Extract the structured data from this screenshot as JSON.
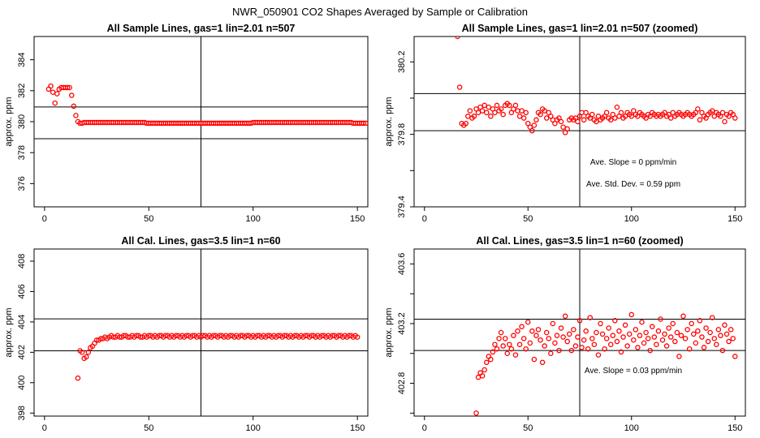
{
  "figure_title": "NWR_050901  CO2 Shapes Averaged by Sample or Calibration",
  "colors": {
    "marker": "#ff0000",
    "axes": "#000000",
    "background": "#ffffff"
  },
  "chart_data": [
    {
      "type": "scatter",
      "title": "All Sample Lines, gas=1 lin=2.01 n=507",
      "xlabel": "",
      "ylabel": "approx. ppm",
      "xlim": [
        -5,
        155
      ],
      "ylim": [
        374.5,
        385.5
      ],
      "xticks": [
        0,
        50,
        100,
        150
      ],
      "yticks": [
        376,
        378,
        380,
        382,
        384
      ],
      "vline": 75,
      "hlines": [
        378.9,
        380.95
      ],
      "annotations": [],
      "points": {
        "x_start": 2,
        "x_end": 150,
        "x_step": 1,
        "y": [
          382.1,
          382.3,
          381.9,
          381.2,
          381.8,
          382.1,
          382.2,
          382.2,
          382.2,
          382.2,
          382.2,
          381.7,
          381.0,
          380.4,
          380.0,
          379.9,
          379.9,
          379.95,
          379.95,
          379.95,
          379.95,
          379.95,
          379.95,
          379.95,
          379.95,
          379.95,
          379.95,
          379.95,
          379.95,
          379.95,
          379.95,
          379.95,
          379.95,
          379.95,
          379.95,
          379.95,
          379.95,
          379.95,
          379.95,
          379.95,
          379.95,
          379.95,
          379.95,
          379.95,
          379.95,
          379.95,
          379.95,
          379.9,
          379.9,
          379.9,
          379.9,
          379.9,
          379.9,
          379.9,
          379.9,
          379.9,
          379.9,
          379.9,
          379.9,
          379.9,
          379.9,
          379.9,
          379.9,
          379.9,
          379.9,
          379.9,
          379.9,
          379.9,
          379.9,
          379.9,
          379.9,
          379.9,
          379.9,
          379.9,
          379.9,
          379.9,
          379.9,
          379.9,
          379.9,
          379.9,
          379.9,
          379.9,
          379.9,
          379.9,
          379.9,
          379.9,
          379.9,
          379.9,
          379.9,
          379.9,
          379.9,
          379.9,
          379.9,
          379.9,
          379.9,
          379.9,
          379.9,
          379.9,
          379.95,
          379.95,
          379.95,
          379.95,
          379.95,
          379.95,
          379.95,
          379.95,
          379.95,
          379.95,
          379.95,
          379.95,
          379.95,
          379.95,
          379.95,
          379.95,
          379.95,
          379.95,
          379.95,
          379.95,
          379.95,
          379.95,
          379.95,
          379.95,
          379.95,
          379.95,
          379.95,
          379.95,
          379.95,
          379.95,
          379.95,
          379.95,
          379.95,
          379.95,
          379.95,
          379.95,
          379.95,
          379.95,
          379.95,
          379.95,
          379.95,
          379.95,
          379.95,
          379.95,
          379.95,
          379.95,
          379.95,
          379.95,
          379.9,
          379.9,
          379.9,
          379.9,
          379.9,
          379.9,
          379.9
        ]
      }
    },
    {
      "type": "scatter",
      "title": "All Sample Lines, gas=1 lin=2.01 n=507 (zoomed)",
      "xlabel": "",
      "ylabel": "approx. ppm",
      "xlim": [
        -5,
        155
      ],
      "ylim": [
        379.4,
        380.34
      ],
      "xticks": [
        0,
        50,
        100,
        150
      ],
      "yticks": [
        379.4,
        379.6,
        379.8,
        380.0,
        380.2
      ],
      "ytick_labels": [
        "379.4",
        "",
        "379.8",
        "",
        "380.2"
      ],
      "vline": 75,
      "hlines": [
        379.82,
        380.025
      ],
      "annotations": [
        "Ave. Slope =  0  ppm/min",
        "Ave. Std. Dev. =  0.59  ppm"
      ],
      "points": {
        "x_start": 16,
        "x_end": 150,
        "x_step": 1,
        "y": [
          380.34,
          380.06,
          379.86,
          379.85,
          379.86,
          379.9,
          379.93,
          379.89,
          379.9,
          379.94,
          379.92,
          379.95,
          379.93,
          379.96,
          379.92,
          379.95,
          379.9,
          379.94,
          379.92,
          379.96,
          379.93,
          379.94,
          379.91,
          379.96,
          379.97,
          379.96,
          379.92,
          379.94,
          379.96,
          379.93,
          379.9,
          379.93,
          379.89,
          379.92,
          379.86,
          379.84,
          379.82,
          379.85,
          379.88,
          379.92,
          379.91,
          379.94,
          379.93,
          379.89,
          379.92,
          379.9,
          379.88,
          379.86,
          379.88,
          379.89,
          379.87,
          379.84,
          379.81,
          379.83,
          379.88,
          379.89,
          379.88,
          379.89,
          379.87,
          379.9,
          379.92,
          379.88,
          379.92,
          379.9,
          379.89,
          379.91,
          379.88,
          379.87,
          379.9,
          379.88,
          379.89,
          379.9,
          379.92,
          379.89,
          379.88,
          379.91,
          379.89,
          379.95,
          379.9,
          379.92,
          379.89,
          379.9,
          379.92,
          379.91,
          379.9,
          379.93,
          379.91,
          379.9,
          379.92,
          379.91,
          379.9,
          379.89,
          379.91,
          379.9,
          379.92,
          379.91,
          379.9,
          379.91,
          379.9,
          379.91,
          379.92,
          379.9,
          379.91,
          379.89,
          379.92,
          379.9,
          379.91,
          379.92,
          379.91,
          379.9,
          379.91,
          379.92,
          379.91,
          379.9,
          379.91,
          379.92,
          379.94,
          379.88,
          379.92,
          379.9,
          379.89,
          379.91,
          379.92,
          379.93,
          379.9,
          379.92,
          379.91,
          379.9,
          379.92,
          379.87,
          379.91,
          379.9,
          379.92,
          379.91,
          379.89
        ]
      }
    },
    {
      "type": "scatter",
      "title": "All Cal. Lines, gas=3.5 lin=1 n=60",
      "xlabel": "",
      "ylabel": "approx. ppm",
      "xlim": [
        -5,
        155
      ],
      "ylim": [
        397.8,
        408.8
      ],
      "xticks": [
        0,
        50,
        100,
        150
      ],
      "yticks": [
        398,
        400,
        402,
        404,
        406,
        408
      ],
      "vline": 75,
      "hlines": [
        402.1,
        404.2
      ],
      "annotations": [],
      "points": {
        "x_start": 16,
        "x_end": 150,
        "x_step": 1,
        "y": [
          400.3,
          402.1,
          402.0,
          401.6,
          401.7,
          402.0,
          402.3,
          402.4,
          402.6,
          402.8,
          402.8,
          402.9,
          402.9,
          403.0,
          402.9,
          403.0,
          403.1,
          403.0,
          403.0,
          403.1,
          403.0,
          403.0,
          403.1,
          403.1,
          403.0,
          403.0,
          403.1,
          403.0,
          403.1,
          403.1,
          403.0,
          403.0,
          403.1,
          403.0,
          403.1,
          403.1,
          403.0,
          403.1,
          403.0,
          403.1,
          403.1,
          403.0,
          403.1,
          403.1,
          403.0,
          403.1,
          403.0,
          403.1,
          403.1,
          403.0,
          403.1,
          403.0,
          403.1,
          403.1,
          403.0,
          403.1,
          403.1,
          403.0,
          403.1,
          403.0,
          403.1,
          403.1,
          403.0,
          403.1,
          403.0,
          403.1,
          403.1,
          403.0,
          403.1,
          403.1,
          403.0,
          403.1,
          403.0,
          403.1,
          403.1,
          403.0,
          403.1,
          403.0,
          403.1,
          403.1,
          403.0,
          403.1,
          403.1,
          403.0,
          403.1,
          403.0,
          403.1,
          403.1,
          403.0,
          403.1,
          403.0,
          403.1,
          403.1,
          403.0,
          403.1,
          403.0,
          403.1,
          403.1,
          403.0,
          403.1,
          403.1,
          403.0,
          403.1,
          403.0,
          403.1,
          403.1,
          403.0,
          403.1,
          403.0,
          403.1,
          403.1,
          403.0,
          403.1,
          403.1,
          403.0,
          403.1,
          403.0,
          403.1,
          403.1,
          403.0,
          403.1,
          403.0,
          403.1,
          403.1,
          403.0,
          403.1,
          403.1,
          403.0,
          403.1,
          403.0,
          403.1,
          403.1,
          403.0,
          403.1,
          403.0
        ]
      }
    },
    {
      "type": "scatter",
      "title": "All Cal. Lines, gas=3.5 lin=1 n=60 (zoomed)",
      "xlabel": "",
      "ylabel": "approx. ppm",
      "xlim": [
        -5,
        155
      ],
      "ylim": [
        402.58,
        403.7
      ],
      "xticks": [
        0,
        50,
        100,
        150
      ],
      "yticks": [
        402.6,
        402.8,
        403.0,
        403.2,
        403.4,
        403.6
      ],
      "ytick_labels": [
        "",
        "402.8",
        "",
        "403.2",
        "",
        "403.6"
      ],
      "vline": 75,
      "hlines": [
        403.02,
        403.23
      ],
      "annotations": [
        "Ave. Slope =  0.03  ppm/min"
      ],
      "points": {
        "x_start": 25,
        "x_end": 150,
        "x_step": 1,
        "y": [
          402.6,
          402.84,
          402.87,
          402.85,
          402.89,
          402.94,
          402.98,
          402.96,
          403.01,
          403.06,
          403.03,
          403.1,
          403.14,
          403.05,
          403.1,
          403.0,
          403.06,
          403.03,
          403.12,
          402.99,
          403.15,
          403.06,
          403.18,
          403.1,
          403.03,
          403.21,
          403.07,
          403.15,
          402.96,
          403.12,
          403.16,
          403.09,
          402.94,
          403.05,
          403.14,
          403.1,
          403.0,
          403.2,
          403.07,
          403.12,
          403.02,
          403.17,
          403.11,
          403.25,
          403.08,
          403.13,
          403.02,
          403.16,
          403.05,
          403.11,
          403.22,
          403.04,
          403.09,
          403.15,
          403.03,
          403.24,
          403.1,
          403.06,
          403.14,
          402.99,
          403.2,
          403.13,
          403.03,
          403.1,
          403.17,
          403.06,
          403.12,
          403.22,
          403.08,
          403.15,
          403.01,
          403.11,
          403.19,
          403.05,
          403.13,
          403.26,
          403.09,
          403.16,
          403.04,
          403.12,
          403.21,
          403.07,
          403.14,
          403.1,
          403.02,
          403.18,
          403.11,
          403.06,
          403.15,
          403.23,
          403.09,
          403.13,
          403.05,
          403.17,
          403.11,
          403.2,
          403.08,
          403.14,
          402.98,
          403.12,
          403.25,
          403.1,
          403.16,
          403.03,
          403.2,
          403.13,
          403.07,
          403.15,
          403.22,
          403.11,
          403.04,
          403.17,
          403.08,
          403.14,
          403.24,
          403.1,
          403.06,
          403.16,
          403.12,
          403.02,
          403.19,
          403.13,
          403.08,
          403.16,
          403.1,
          402.98
        ]
      }
    }
  ]
}
